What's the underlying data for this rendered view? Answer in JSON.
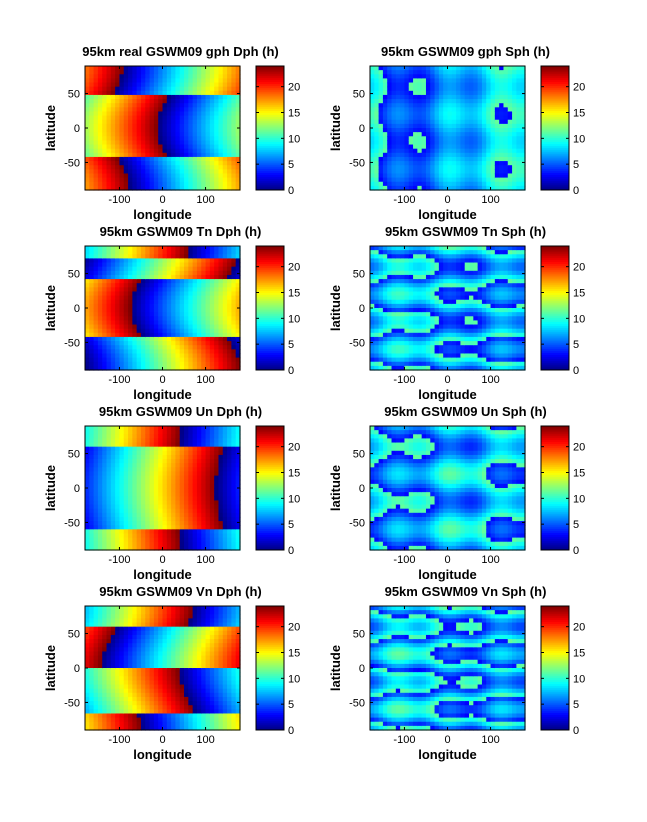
{
  "figure": {
    "colorbar_ticks": [
      "0",
      "5",
      "10",
      "15",
      "20"
    ]
  },
  "chart_data": [
    {
      "type": "heatmap",
      "title": "95km real GSWM09 gph Dph (h)",
      "xlabel": "longitude",
      "ylabel": "latitude",
      "xlim": [
        -180,
        180
      ],
      "ylim": [
        -90,
        90
      ],
      "x_ticks": [
        "-100",
        "0",
        "100"
      ],
      "y_ticks": [
        "50",
        "0",
        "-50"
      ],
      "colorbar": {
        "range": [
          0,
          24
        ],
        "colormap": "jet"
      },
      "pattern": {
        "kind": "diurnal",
        "slope_h_per_deg": 0.0667,
        "boundaries_lat": [
          -42,
          45
        ],
        "phase_offsets_h": [
          7,
          23,
          8
        ],
        "lat_curvature": 0.9
      }
    },
    {
      "type": "heatmap",
      "title": "95km GSWM09 gph Sph (h)",
      "xlabel": "longitude",
      "ylabel": "latitude",
      "xlim": [
        -180,
        180
      ],
      "ylim": [
        -90,
        90
      ],
      "x_ticks": [
        "-100",
        "0",
        "100"
      ],
      "y_ticks": [
        "50",
        "0",
        "-50"
      ],
      "colorbar": {
        "range": [
          0,
          24
        ],
        "colormap": "jet"
      },
      "pattern": {
        "kind": "semidiurnal",
        "base_h": 5,
        "slope_h_per_deg": 0.0333,
        "lat_wave": 0.6
      }
    },
    {
      "type": "heatmap",
      "title": "95km GSWM09 Tn Dph (h)",
      "xlabel": "longitude",
      "ylabel": "latitude",
      "xlim": [
        -180,
        180
      ],
      "ylim": [
        -90,
        90
      ],
      "x_ticks": [
        "-100",
        "0",
        "100"
      ],
      "y_ticks": [
        "50",
        "0",
        "-50"
      ],
      "colorbar": {
        "range": [
          0,
          24
        ],
        "colormap": "jet"
      },
      "pattern": {
        "kind": "diurnal",
        "slope_h_per_deg": 0.0667,
        "boundaries_lat": [
          -40,
          40,
          72
        ],
        "phase_offsets_h": [
          14,
          3,
          14,
          22
        ],
        "lat_curvature": 1.0
      }
    },
    {
      "type": "heatmap",
      "title": "95km GSWM09 Tn Sph (h)",
      "xlabel": "longitude",
      "ylabel": "latitude",
      "xlim": [
        -180,
        180
      ],
      "ylim": [
        -90,
        90
      ],
      "x_ticks": [
        "-100",
        "0",
        "100"
      ],
      "y_ticks": [
        "50",
        "0",
        "-50"
      ],
      "colorbar": {
        "range": [
          0,
          24
        ],
        "colormap": "jet"
      },
      "pattern": {
        "kind": "semidiurnal",
        "base_h": 6,
        "slope_h_per_deg": 0.0333,
        "lat_wave": 2.2
      }
    },
    {
      "type": "heatmap",
      "title": "95km GSWM09 Un Dph (h)",
      "xlabel": "longitude",
      "ylabel": "latitude",
      "xlim": [
        -180,
        180
      ],
      "ylim": [
        -90,
        90
      ],
      "x_ticks": [
        "-100",
        "0",
        "100"
      ],
      "y_ticks": [
        "50",
        "0",
        "-50"
      ],
      "colorbar": {
        "range": [
          0,
          24
        ],
        "colormap": "jet"
      },
      "pattern": {
        "kind": "diurnal",
        "slope_h_per_deg": 0.0667,
        "boundaries_lat": [
          -58,
          62
        ],
        "phase_offsets_h": [
          22,
          15,
          22
        ],
        "lat_curvature": 0.4
      }
    },
    {
      "type": "heatmap",
      "title": "95km GSWM09 Un Sph (h)",
      "xlabel": "longitude",
      "ylabel": "latitude",
      "xlim": [
        -180,
        180
      ],
      "ylim": [
        -90,
        90
      ],
      "x_ticks": [
        "-100",
        "0",
        "100"
      ],
      "y_ticks": [
        "50",
        "0",
        "-50"
      ],
      "colorbar": {
        "range": [
          0,
          24
        ],
        "colormap": "jet"
      },
      "pattern": {
        "kind": "semidiurnal",
        "base_h": 5.5,
        "slope_h_per_deg": 0.0333,
        "lat_wave": 1.4
      }
    },
    {
      "type": "heatmap",
      "title": "95km GSWM09 Vn Dph (h)",
      "xlabel": "longitude",
      "ylabel": "latitude",
      "xlim": [
        -180,
        180
      ],
      "ylim": [
        -90,
        90
      ],
      "x_ticks": [
        "-100",
        "0",
        "100"
      ],
      "y_ticks": [
        "50",
        "0",
        "-50"
      ],
      "colorbar": {
        "range": [
          0,
          24
        ],
        "colormap": "jet"
      },
      "pattern": {
        "kind": "diurnal",
        "slope_h_per_deg": 0.0667,
        "boundaries_lat": [
          -65,
          0,
          60
        ],
        "phase_offsets_h": [
          5,
          20,
          8,
          21
        ],
        "lat_curvature": 0.8
      }
    },
    {
      "type": "heatmap",
      "title": "95km GSWM09 Vn Sph (h)",
      "xlabel": "longitude",
      "ylabel": "latitude",
      "xlim": [
        -180,
        180
      ],
      "ylim": [
        -90,
        90
      ],
      "x_ticks": [
        "-100",
        "0",
        "100"
      ],
      "y_ticks": [
        "50",
        "0",
        "-50"
      ],
      "colorbar": {
        "range": [
          0,
          24
        ],
        "colormap": "jet"
      },
      "pattern": {
        "kind": "semidiurnal",
        "base_h": 6,
        "slope_h_per_deg": 0.0333,
        "lat_wave": 2.6
      }
    }
  ]
}
